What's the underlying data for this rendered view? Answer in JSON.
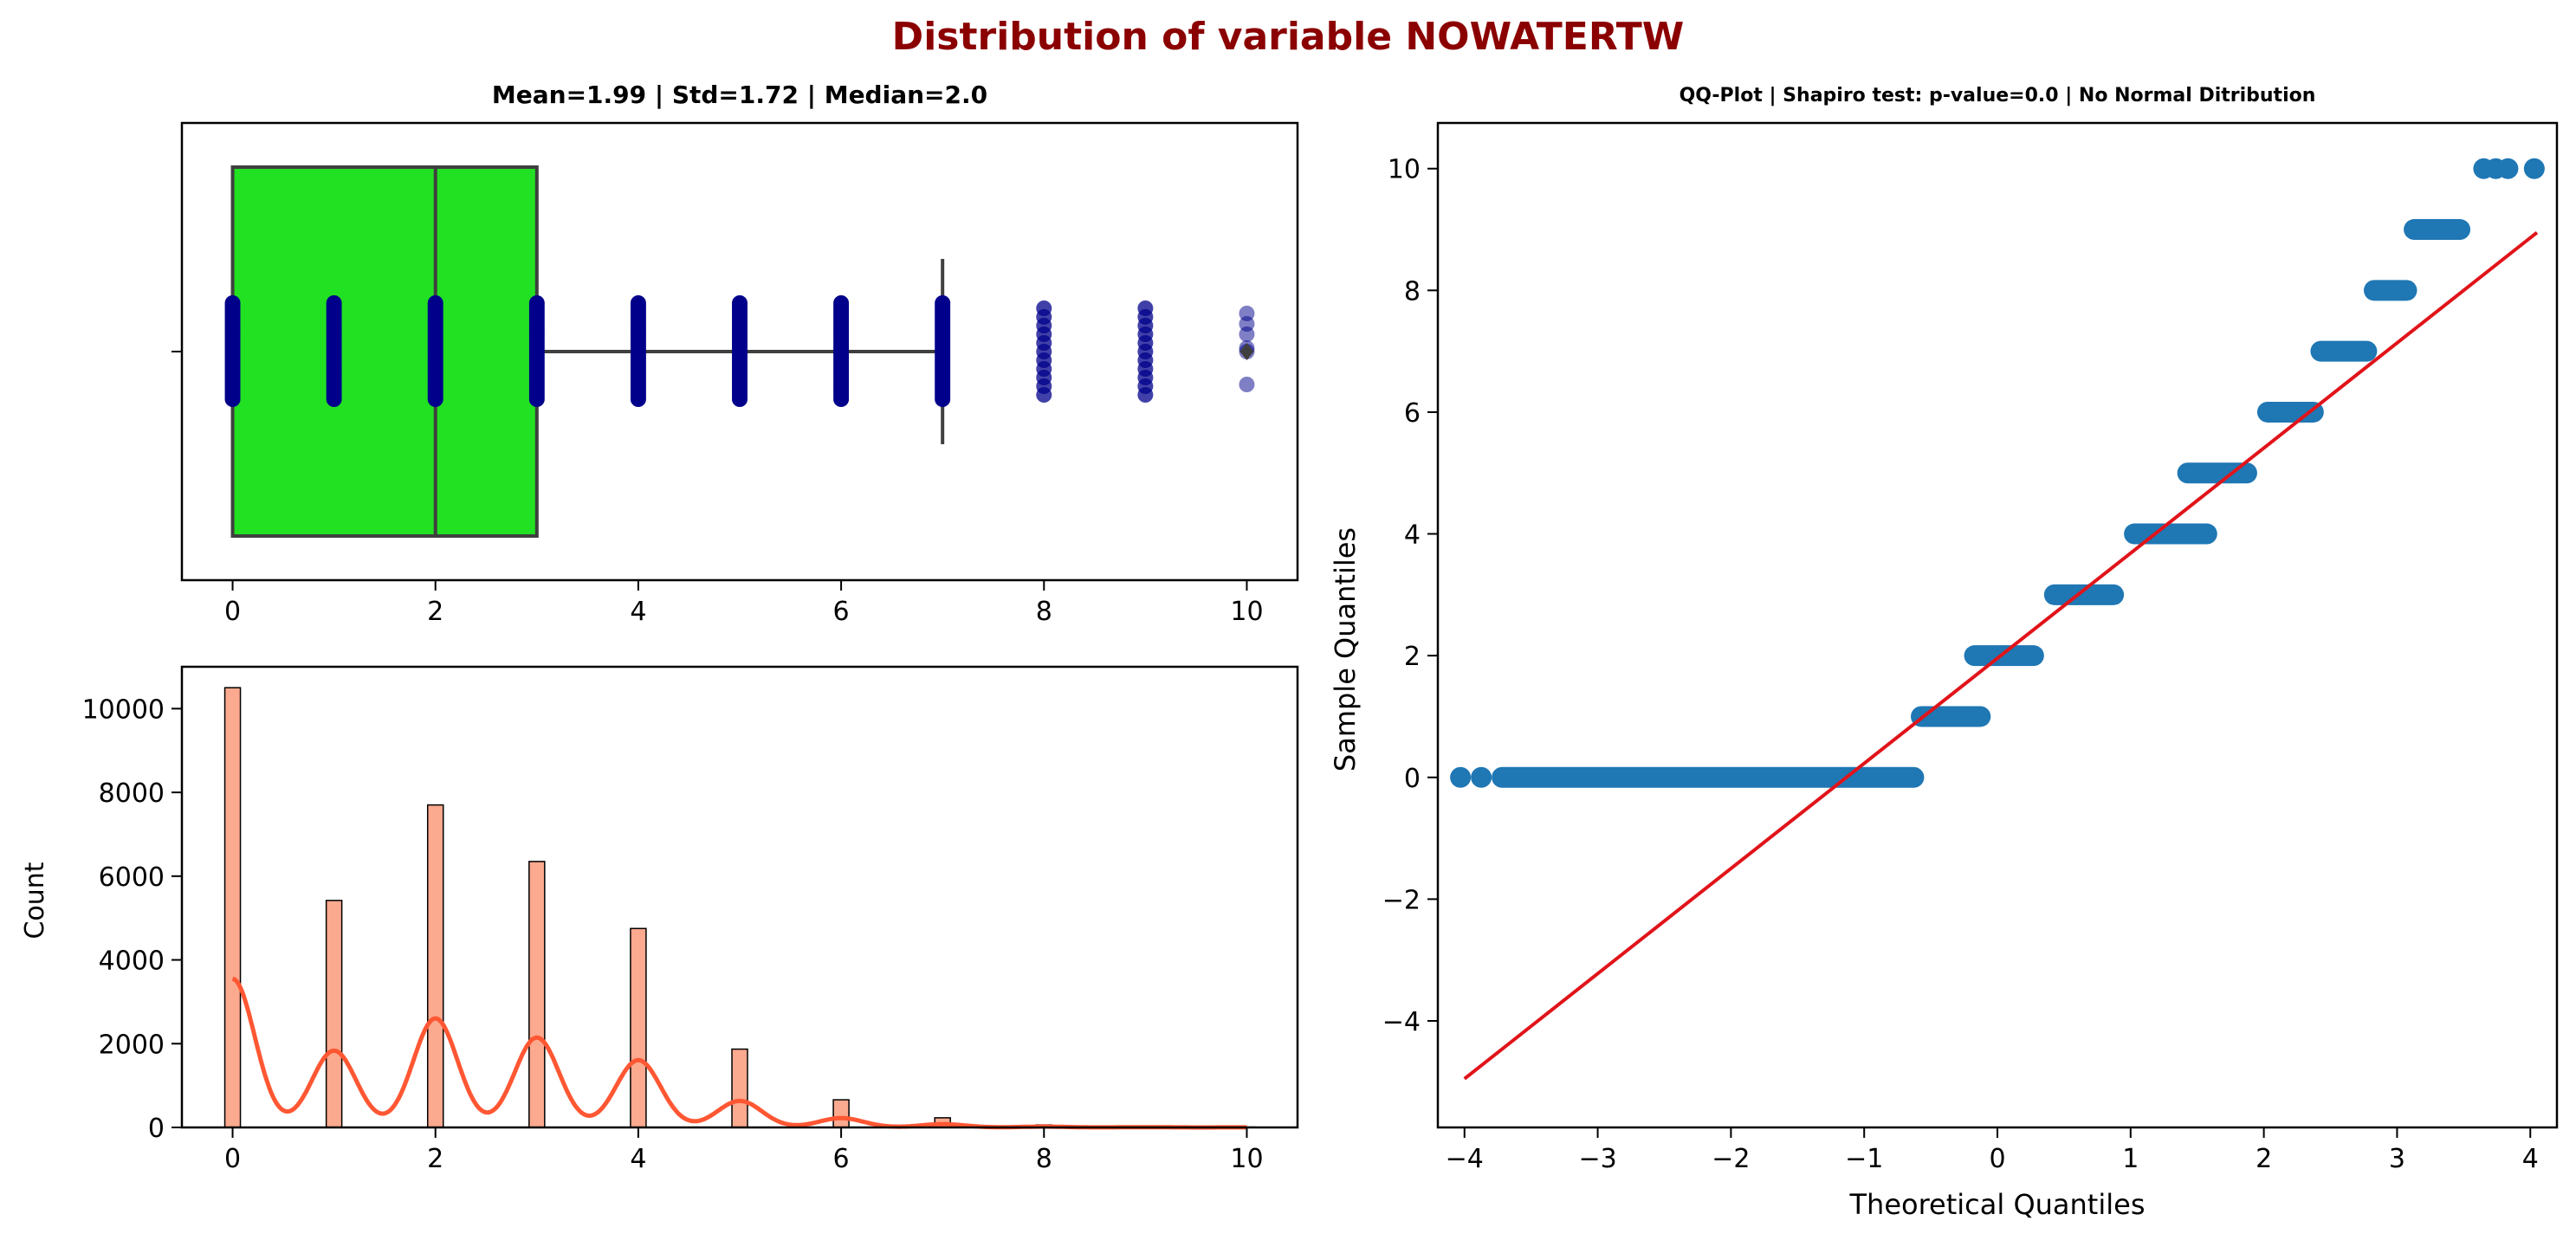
{
  "figure": {
    "title": "Distribution of variable NOWATERTW",
    "title_color": "#8b0000"
  },
  "chart_data": [
    {
      "type": "box",
      "panel": "top-left",
      "title": "Mean=1.99 | Std=1.72 | Median=2.0",
      "xlim": [
        -0.5,
        10.5
      ],
      "x_ticks": [
        0,
        2,
        4,
        6,
        8,
        10
      ],
      "box": {
        "q1": 0,
        "median": 2,
        "q3": 3,
        "whisker_low": 0,
        "whisker_high": 7,
        "outliers": [
          10
        ]
      },
      "box_color": "#22e022",
      "strip_values": [
        0,
        1,
        2,
        3,
        4,
        5,
        6,
        7,
        8,
        9,
        10
      ],
      "strip_color": "#00008b"
    },
    {
      "type": "bar",
      "panel": "bottom-left",
      "ylabel": "Count",
      "xlim": [
        -0.5,
        10.5
      ],
      "ylim": [
        0,
        11000
      ],
      "x_ticks": [
        0,
        2,
        4,
        6,
        8,
        10
      ],
      "y_ticks": [
        0,
        2000,
        4000,
        6000,
        8000,
        10000
      ],
      "categories": [
        0,
        1,
        2,
        3,
        4,
        5,
        6,
        7,
        8,
        9,
        10
      ],
      "values": [
        10500,
        5420,
        7700,
        6350,
        4750,
        1870,
        660,
        230,
        60,
        20,
        8
      ],
      "bar_color": "#fba98f",
      "kde_color": "#ff5733"
    },
    {
      "type": "scatter",
      "panel": "right",
      "title": "QQ-Plot | Shapiro test: p-value=0.0 | No Normal Ditribution",
      "xlabel": "Theoretical Quantiles",
      "ylabel": "Sample Quantiles",
      "xlim": [
        -4.2,
        4.2
      ],
      "ylim": [
        -5.75,
        10.75
      ],
      "x_ticks": [
        -4,
        -3,
        -2,
        -1,
        0,
        1,
        2,
        3,
        4
      ],
      "y_ticks": [
        -4,
        -2,
        0,
        2,
        4,
        6,
        8,
        10
      ],
      "steps": [
        {
          "value": 0,
          "x_from": -4.03,
          "x_to": -0.55
        },
        {
          "value": 1,
          "x_from": -0.65,
          "x_to": -0.05
        },
        {
          "value": 2,
          "x_from": -0.25,
          "x_to": 0.35
        },
        {
          "value": 3,
          "x_from": 0.35,
          "x_to": 0.95
        },
        {
          "value": 4,
          "x_from": 0.95,
          "x_to": 1.65
        },
        {
          "value": 5,
          "x_from": 1.35,
          "x_to": 1.95
        },
        {
          "value": 6,
          "x_from": 1.95,
          "x_to": 2.45
        },
        {
          "value": 7,
          "x_from": 2.35,
          "x_to": 2.85
        },
        {
          "value": 8,
          "x_from": 2.75,
          "x_to": 3.15
        },
        {
          "value": 9,
          "x_from": 3.05,
          "x_to": 3.55
        },
        {
          "value": 10,
          "x_from": 3.65,
          "x_to": 4.03
        }
      ],
      "point_color": "#1f77b4",
      "fit_line": {
        "x": [
          -4.0,
          4.05
        ],
        "y": [
          -4.95,
          8.95
        ]
      },
      "line_color": "#e0141a"
    }
  ]
}
